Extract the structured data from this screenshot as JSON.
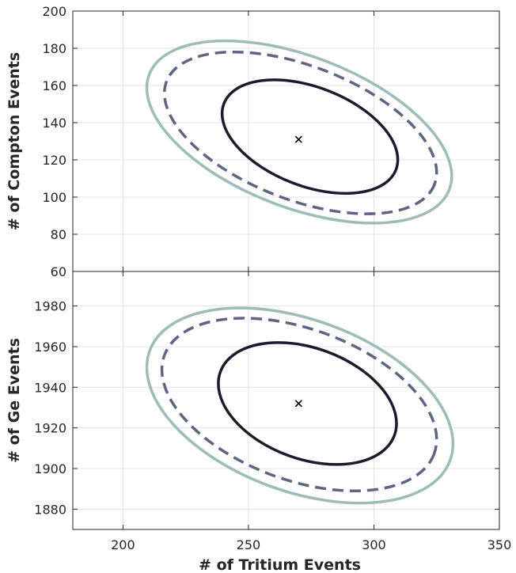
{
  "chart_data": [
    {
      "type": "line",
      "panel": "top",
      "xlabel": "",
      "ylabel": "# of Compton Events",
      "xlim": [
        180,
        350
      ],
      "ylim": [
        60,
        200
      ],
      "xticks": [
        200,
        250,
        300,
        350
      ],
      "yticks": [
        60,
        80,
        100,
        120,
        140,
        160,
        180,
        200
      ],
      "show_x_tick_labels": false,
      "grid": true,
      "center": {
        "x": 270,
        "y": 131,
        "marker": "x"
      },
      "contours": [
        {
          "style": "solid",
          "color": "#1c1b2e",
          "cx": 270,
          "cy": 132.5,
          "rx": 40.0,
          "ry": 30.4,
          "angle_deg": -21,
          "xrange": [
            239.5,
            309.5
          ],
          "yrange": [
            102,
            163
          ]
        },
        {
          "style": "dashed",
          "color": "#5f6480",
          "cx": 270,
          "cy": 134.5,
          "rx": 56.5,
          "ry": 43.0,
          "angle_deg": -21,
          "xrange": [
            216.5,
            325
          ],
          "yrange": [
            91,
            178
          ]
        },
        {
          "style": "solid",
          "color": "#9dbcb8",
          "cx": 270,
          "cy": 136,
          "rx": 62.0,
          "ry": 49.0,
          "angle_deg": -21,
          "xrange": [
            209.5,
            331
          ],
          "yrange": [
            86,
            184
          ]
        }
      ]
    },
    {
      "type": "line",
      "panel": "bottom",
      "xlabel": "# of Tritium Events",
      "ylabel": "# of Ge Events",
      "xlim": [
        180,
        350
      ],
      "ylim": [
        1870,
        1997
      ],
      "xticks": [
        200,
        250,
        300,
        350
      ],
      "yticks": [
        1880,
        1900,
        1920,
        1940,
        1960,
        1980
      ],
      "show_x_tick_labels": true,
      "grid": true,
      "center": {
        "x": 270,
        "y": 1932,
        "marker": "x"
      },
      "contours": [
        {
          "style": "solid",
          "color": "#1c1b2e",
          "cx": 270,
          "cy": 1932,
          "rx": 40.0,
          "ry": 29.5,
          "angle_deg": -20,
          "xrange": [
            238,
            309
          ],
          "yrange": [
            1902,
            1962
          ]
        },
        {
          "style": "dashed",
          "color": "#5f6480",
          "cx": 270,
          "cy": 1931.5,
          "rx": 55.5,
          "ry": 41.5,
          "angle_deg": -20,
          "xrange": [
            215.5,
            325
          ],
          "yrange": [
            1889,
            1974
          ]
        },
        {
          "style": "solid",
          "color": "#9dbcb8",
          "cx": 270,
          "cy": 1931,
          "rx": 62.5,
          "ry": 47.5,
          "angle_deg": -20,
          "xrange": [
            209.5,
            331.5
          ],
          "yrange": [
            1883,
            1979
          ]
        }
      ]
    }
  ],
  "colors": {
    "inner": "#1c1b2e",
    "middle": "#5f6480",
    "outer": "#9dbcb8",
    "grid": "#e3e3e3",
    "axis": "#262626"
  }
}
